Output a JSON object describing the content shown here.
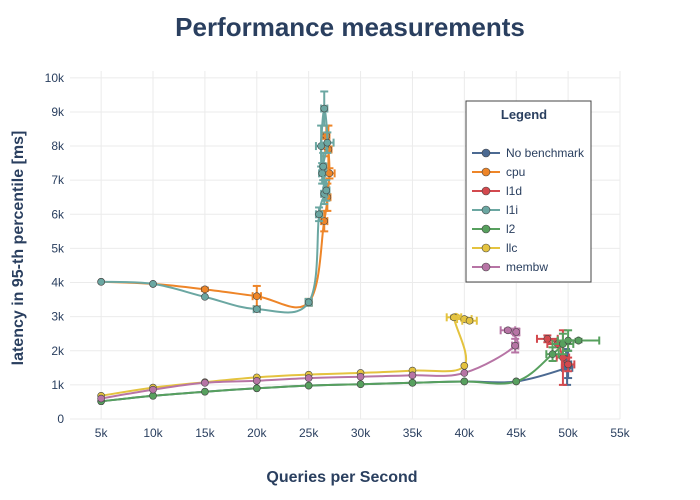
{
  "chart_data": {
    "type": "line",
    "title": "Performance measurements",
    "xlabel": "Queries per Second",
    "ylabel": "latency in 95-th percentile [ms]",
    "xlim": [
      2000,
      55000
    ],
    "ylim": [
      0,
      10200
    ],
    "x_ticks": [
      5000,
      10000,
      15000,
      20000,
      25000,
      30000,
      35000,
      40000,
      45000,
      50000,
      55000
    ],
    "x_tick_labels": [
      "5k",
      "10k",
      "15k",
      "20k",
      "25k",
      "30k",
      "35k",
      "40k",
      "45k",
      "50k",
      "55k"
    ],
    "y_ticks": [
      0,
      1000,
      2000,
      3000,
      4000,
      5000,
      6000,
      7000,
      8000,
      9000,
      10000
    ],
    "y_tick_labels": [
      "0",
      "1k",
      "2k",
      "3k",
      "4k",
      "5k",
      "6k",
      "7k",
      "8k",
      "9k",
      "10k"
    ],
    "grid": true,
    "legend": {
      "title": "Legend",
      "position": "top-right"
    },
    "series": [
      {
        "name": "No benchmark",
        "color": "#4c6a92",
        "points": [
          [
            5000,
            520
          ],
          [
            10000,
            680
          ],
          [
            15000,
            800
          ],
          [
            20000,
            900
          ],
          [
            25000,
            980
          ],
          [
            30000,
            1020
          ],
          [
            35000,
            1060
          ],
          [
            40000,
            1100
          ],
          [
            45000,
            1100
          ],
          [
            49900,
            1500
          ],
          [
            50000,
            1600
          ],
          [
            49800,
            1750
          ]
        ],
        "xerr": [
          0,
          0,
          0,
          0,
          0,
          0,
          0,
          0,
          0,
          500,
          300,
          200
        ],
        "yerr": [
          0,
          0,
          0,
          0,
          0,
          0,
          0,
          0,
          0,
          500,
          400,
          300
        ]
      },
      {
        "name": "cpu",
        "color": "#ee8528",
        "points": [
          [
            5000,
            4020
          ],
          [
            10000,
            3960
          ],
          [
            15000,
            3800
          ],
          [
            20000,
            3600
          ],
          [
            25000,
            3420
          ],
          [
            26500,
            5800
          ],
          [
            26800,
            6500
          ],
          [
            27000,
            7200
          ],
          [
            26900,
            7900
          ],
          [
            26700,
            8300
          ],
          [
            26600,
            8000
          ]
        ],
        "xerr": [
          0,
          0,
          0,
          400,
          300,
          300,
          300,
          500,
          300,
          300,
          300
        ],
        "yerr": [
          0,
          0,
          50,
          300,
          100,
          300,
          400,
          150,
          700,
          300,
          300
        ]
      },
      {
        "name": "l1d",
        "color": "#d3494e",
        "points": [
          [
            48000,
            2350
          ],
          [
            49000,
            2200
          ],
          [
            49500,
            1800
          ],
          [
            50000,
            1600
          ]
        ],
        "xerr": [
          1000,
          1000,
          600,
          600
        ],
        "yerr": [
          100,
          100,
          800,
          200
        ]
      },
      {
        "name": "l1i",
        "color": "#6ba7a2",
        "points": [
          [
            5000,
            4020
          ],
          [
            10000,
            3960
          ],
          [
            15000,
            3580
          ],
          [
            20000,
            3220
          ],
          [
            25000,
            3420
          ],
          [
            26000,
            6000
          ],
          [
            26500,
            6600
          ],
          [
            26300,
            7200
          ],
          [
            26200,
            8000
          ],
          [
            26500,
            9100
          ],
          [
            26800,
            8100
          ],
          [
            26400,
            7400
          ],
          [
            26700,
            6700
          ]
        ],
        "xerr": [
          0,
          0,
          0,
          300,
          300,
          300,
          300,
          300,
          500,
          300,
          600,
          300,
          300
        ],
        "yerr": [
          0,
          0,
          0,
          0,
          100,
          200,
          300,
          300,
          600,
          500,
          300,
          400,
          300
        ]
      },
      {
        "name": "l2",
        "color": "#57a05e",
        "points": [
          [
            5000,
            520
          ],
          [
            10000,
            680
          ],
          [
            15000,
            800
          ],
          [
            20000,
            900
          ],
          [
            25000,
            980
          ],
          [
            30000,
            1020
          ],
          [
            35000,
            1060
          ],
          [
            40000,
            1100
          ],
          [
            45000,
            1100
          ],
          [
            48500,
            1900
          ],
          [
            49500,
            2200
          ],
          [
            50000,
            2300
          ],
          [
            51000,
            2300
          ]
        ],
        "xerr": [
          0,
          0,
          0,
          0,
          0,
          0,
          0,
          0,
          0,
          600,
          1000,
          1000,
          2000
        ],
        "yerr": [
          0,
          0,
          0,
          0,
          0,
          0,
          0,
          0,
          0,
          200,
          300,
          300,
          50
        ]
      },
      {
        "name": "llc",
        "color": "#e4c33f",
        "points": [
          [
            5000,
            680
          ],
          [
            10000,
            920
          ],
          [
            15000,
            1080
          ],
          [
            20000,
            1220
          ],
          [
            25000,
            1300
          ],
          [
            30000,
            1350
          ],
          [
            35000,
            1420
          ],
          [
            40000,
            1560
          ],
          [
            39000,
            2980
          ],
          [
            40000,
            2930
          ],
          [
            40500,
            2880
          ]
        ],
        "xerr": [
          0,
          0,
          0,
          0,
          0,
          0,
          0,
          0,
          700,
          700,
          700
        ],
        "yerr": [
          0,
          0,
          0,
          0,
          0,
          0,
          0,
          0,
          50,
          50,
          50
        ]
      },
      {
        "name": "membw",
        "color": "#b774a5",
        "points": [
          [
            5000,
            600
          ],
          [
            10000,
            860
          ],
          [
            15000,
            1060
          ],
          [
            20000,
            1120
          ],
          [
            25000,
            1200
          ],
          [
            30000,
            1240
          ],
          [
            35000,
            1280
          ],
          [
            40000,
            1350
          ],
          [
            44900,
            2150
          ],
          [
            44200,
            2600
          ],
          [
            45000,
            2550
          ]
        ],
        "xerr": [
          0,
          0,
          0,
          0,
          0,
          0,
          0,
          0,
          300,
          700,
          300
        ],
        "yerr": [
          0,
          0,
          0,
          0,
          0,
          0,
          0,
          0,
          200,
          50,
          100
        ]
      }
    ]
  }
}
